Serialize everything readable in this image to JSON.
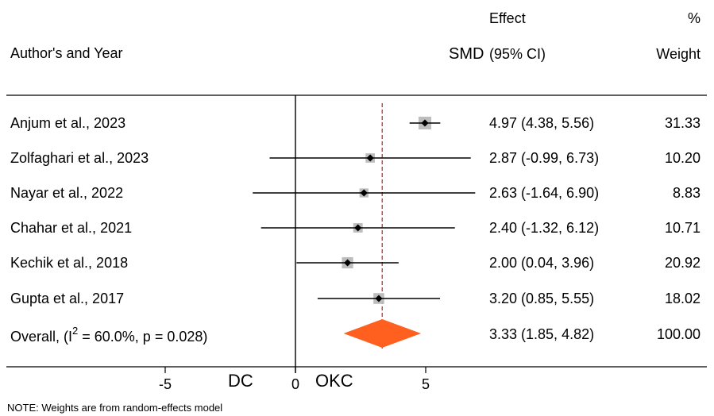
{
  "header": {
    "author_label": "Author's and Year",
    "smd_label": "SMD",
    "effect_label": "Effect",
    "ci_label": "(95% CI)",
    "pct_label": "%",
    "weight_label": "Weight"
  },
  "footer": {
    "note": "NOTE: Weights are from random-effects model",
    "left_direction": "DC",
    "right_direction": "OKC"
  },
  "chart_data": {
    "type": "forest",
    "xlabel": "SMD",
    "xlim": [
      -9,
      9
    ],
    "xticks": [
      -5,
      0,
      5
    ],
    "null_line": 0,
    "overall_line": 3.33,
    "colors": {
      "diamond": "#FF5F1F",
      "box": "#BDBDBD",
      "overall_line": "#B22222"
    },
    "studies": [
      {
        "label": "Anjum et al., 2023",
        "effect": 4.97,
        "lower": 4.38,
        "upper": 5.56,
        "ci_text": "4.97 (4.38, 5.56)",
        "weight": 31.33,
        "weight_text": "31.33"
      },
      {
        "label": "Zolfaghari et al., 2023",
        "effect": 2.87,
        "lower": -0.99,
        "upper": 6.73,
        "ci_text": "2.87 (-0.99, 6.73)",
        "weight": 10.2,
        "weight_text": "10.20"
      },
      {
        "label": "Nayar et al., 2022",
        "effect": 2.63,
        "lower": -1.64,
        "upper": 6.9,
        "ci_text": "2.63 (-1.64, 6.90)",
        "weight": 8.83,
        "weight_text": "8.83"
      },
      {
        "label": "Chahar et al., 2021",
        "effect": 2.4,
        "lower": -1.32,
        "upper": 6.12,
        "ci_text": "2.40 (-1.32, 6.12)",
        "weight": 10.71,
        "weight_text": "10.71"
      },
      {
        "label": "Kechik et al., 2018",
        "effect": 2.0,
        "lower": 0.04,
        "upper": 3.96,
        "ci_text": "2.00 (0.04, 3.96)",
        "weight": 20.92,
        "weight_text": "20.92"
      },
      {
        "label": "Gupta et al., 2017",
        "effect": 3.2,
        "lower": 0.85,
        "upper": 5.55,
        "ci_text": "3.20 (0.85, 5.55)",
        "weight": 18.02,
        "weight_text": "18.02"
      }
    ],
    "overall": {
      "label_prefix": "Overall, (I",
      "label_sup": "2",
      "label_suffix": " = 60.0%, p = 0.028)",
      "effect": 3.33,
      "lower": 1.85,
      "upper": 4.82,
      "ci_text": "3.33 (1.85, 4.82)",
      "weight_text": "100.00"
    }
  }
}
